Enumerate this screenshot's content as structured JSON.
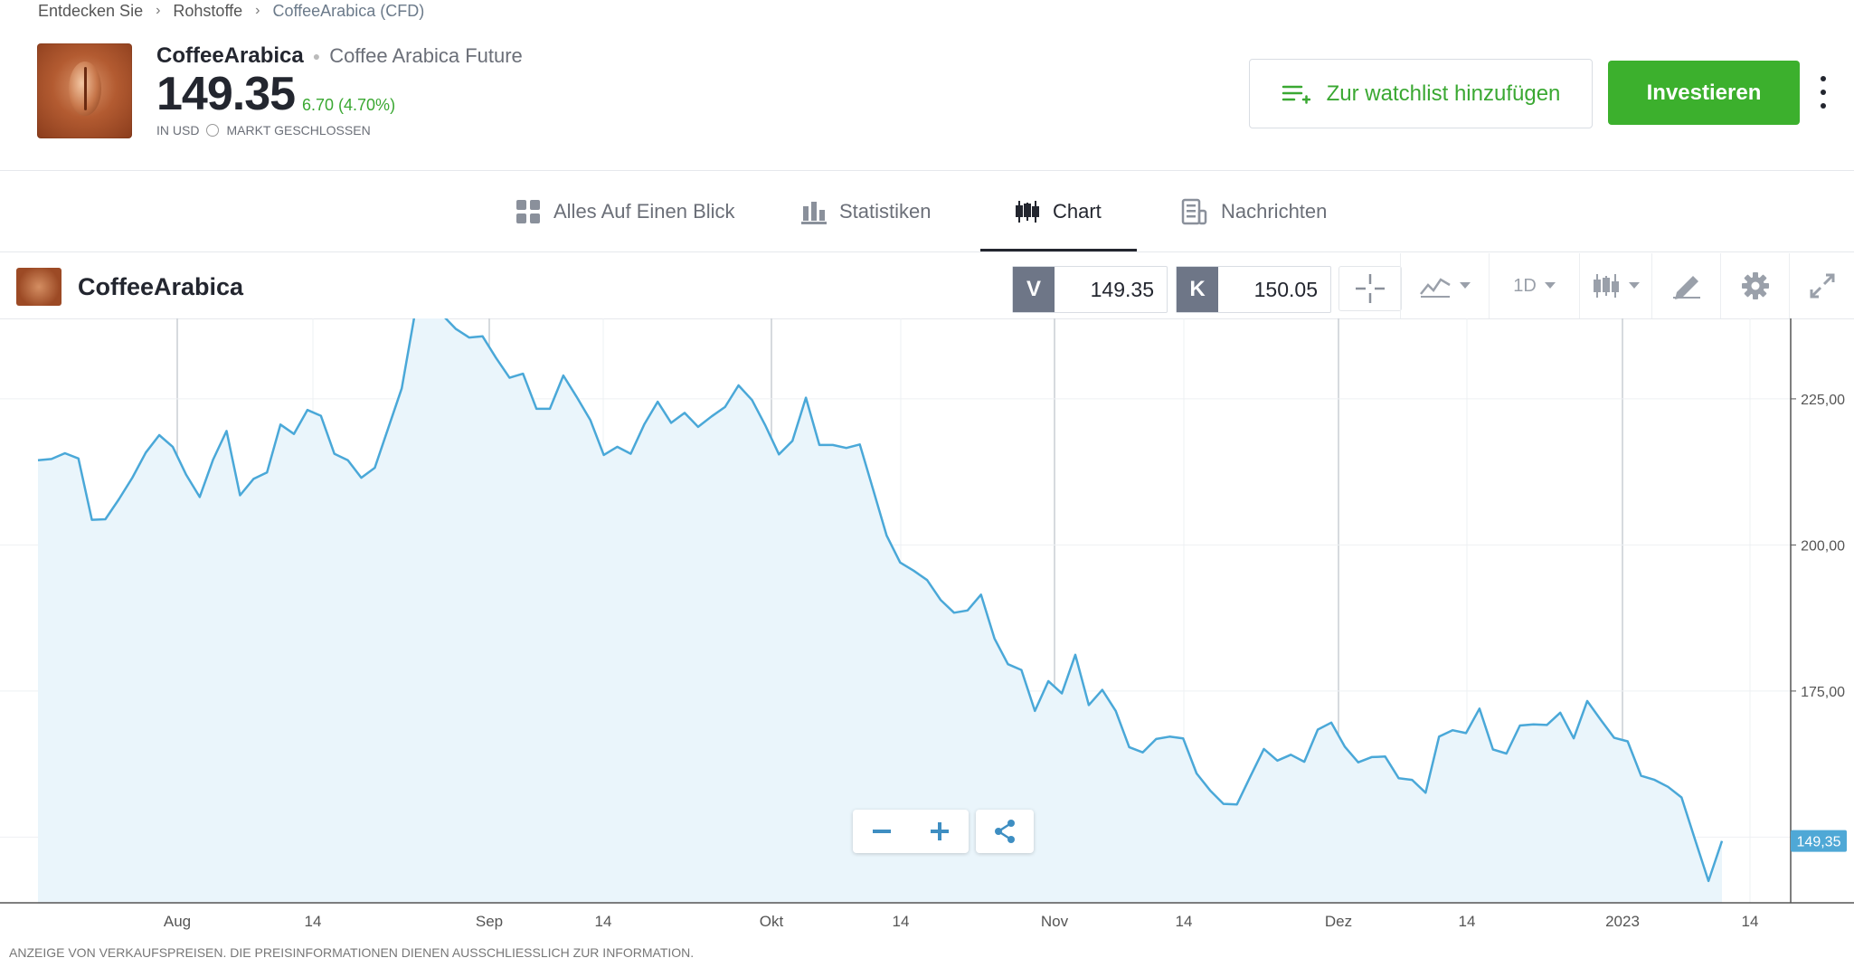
{
  "breadcrumb": {
    "items": [
      "Entdecken Sie",
      "Rohstoffe",
      "CoffeeArabica (CFD)"
    ]
  },
  "instrument": {
    "name": "CoffeeArabica",
    "full_name": "Coffee Arabica Future",
    "price": "149.35",
    "change": "6.70 (4.70%)",
    "currency": "IN USD",
    "market_status": "MARKT GESCHLOSSEN"
  },
  "actions": {
    "watchlist_label": "Zur watchlist hinzufügen",
    "invest_label": "Investieren"
  },
  "tabs": [
    {
      "label": "Alles Auf Einen Blick",
      "icon": "grid-icon"
    },
    {
      "label": "Statistiken",
      "icon": "bar-chart-icon"
    },
    {
      "label": "Chart",
      "icon": "candlestick-icon",
      "active": true
    },
    {
      "label": "Nachrichten",
      "icon": "news-icon"
    }
  ],
  "toolbar": {
    "title": "CoffeeArabica",
    "sell_label": "V",
    "sell_value": "149.35",
    "buy_label": "K",
    "buy_value": "150.05",
    "interval": "1D"
  },
  "footer_note": "ANZEIGE VON VERKAUFSPREISEN. DIE PREISINFORMATIONEN DIENEN AUSSCHLIESSLICH ZUR INFORMATION.",
  "colors": {
    "accent_green": "#3cb02d",
    "line_blue": "#4aa8d8",
    "fill_blue": "#eaf5fb",
    "label_blue": "#4fa8d6"
  },
  "chart_data": {
    "type": "area",
    "x_tick_labels": [
      "Aug",
      "14",
      "Sep",
      "14",
      "Okt",
      "14",
      "Nov",
      "14",
      "Dez",
      "14",
      "2023",
      "14"
    ],
    "y_tick_labels": [
      "225,00",
      "200,00",
      "175,00"
    ],
    "ylim": [
      140,
      240
    ],
    "last_value_label": "149,35",
    "grid": true,
    "values": [
      214.5,
      214.7,
      215.7,
      214.8,
      204.3,
      204.4,
      207.8,
      211.5,
      215.8,
      218.8,
      216.8,
      212,
      208.2,
      214.6,
      219.5,
      208.5,
      211.3,
      212.4,
      220.6,
      219,
      223.1,
      222.1,
      215.6,
      214.5,
      211.5,
      213.2,
      220,
      226.8,
      239.9,
      239.3,
      239.4,
      237,
      235.5,
      235.7,
      232,
      228.6,
      229.3,
      223.3,
      223.3,
      229,
      225.3,
      221.4,
      215.4,
      216.8,
      215.6,
      220.6,
      224.5,
      220.9,
      222.6,
      220.2,
      222,
      223.6,
      227.3,
      224.8,
      220.4,
      215.5,
      217.8,
      225.2,
      217.1,
      217.1,
      216.6,
      217.2,
      209.4,
      201.6,
      197,
      195.6,
      194,
      190.6,
      188.4,
      188.8,
      191.5,
      184,
      179.6,
      178.6,
      171.6,
      176.7,
      174.6,
      181.2,
      172.6,
      175.2,
      171.6,
      165.4,
      164.5,
      166.8,
      167.2,
      166.9,
      160.9,
      158,
      155.7,
      155.6,
      160.4,
      165.1,
      163.1,
      164.1,
      162.9,
      168.4,
      169.6,
      165.5,
      162.8,
      163.7,
      163.8,
      160.1,
      159.8,
      157.6,
      167.2,
      168.3,
      167.8,
      172,
      165,
      164.3,
      169.1,
      169.3,
      169.2,
      171.3,
      166.9,
      173.3,
      170.1,
      167,
      166.4,
      160.5,
      159.8,
      158.6,
      156.8,
      149.6,
      142.5,
      149.35
    ]
  }
}
